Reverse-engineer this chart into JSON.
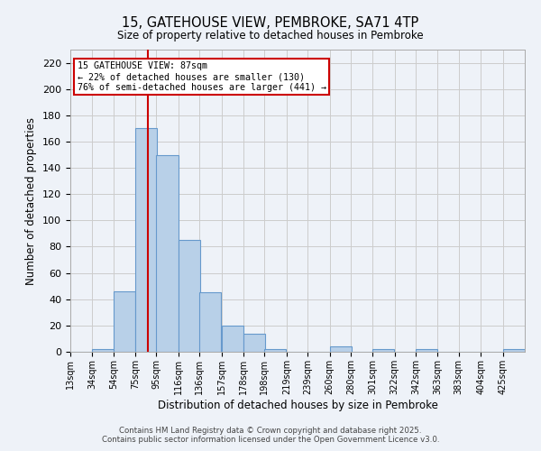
{
  "title": "15, GATEHOUSE VIEW, PEMBROKE, SA71 4TP",
  "subtitle": "Size of property relative to detached houses in Pembroke",
  "xlabel": "Distribution of detached houses by size in Pembroke",
  "ylabel": "Number of detached properties",
  "bin_labels": [
    "13sqm",
    "34sqm",
    "54sqm",
    "75sqm",
    "95sqm",
    "116sqm",
    "136sqm",
    "157sqm",
    "178sqm",
    "198sqm",
    "219sqm",
    "239sqm",
    "260sqm",
    "280sqm",
    "301sqm",
    "322sqm",
    "342sqm",
    "363sqm",
    "383sqm",
    "404sqm",
    "425sqm"
  ],
  "bin_edges": [
    13,
    34,
    54,
    75,
    95,
    116,
    136,
    157,
    178,
    198,
    219,
    239,
    260,
    280,
    301,
    322,
    342,
    363,
    383,
    404,
    425
  ],
  "bar_heights": [
    0,
    2,
    46,
    170,
    150,
    85,
    45,
    20,
    14,
    2,
    0,
    0,
    4,
    0,
    2,
    0,
    2,
    0,
    0,
    0,
    2
  ],
  "bar_color": "#b8d0e8",
  "bar_edgecolor": "#6699cc",
  "property_size": 87,
  "red_line_color": "#cc0000",
  "annotation_line1": "15 GATEHOUSE VIEW: 87sqm",
  "annotation_line2": "← 22% of detached houses are smaller (130)",
  "annotation_line3": "76% of semi-detached houses are larger (441) →",
  "annotation_box_color": "#ffffff",
  "annotation_box_edgecolor": "#cc0000",
  "ylim": [
    0,
    230
  ],
  "yticks": [
    0,
    20,
    40,
    60,
    80,
    100,
    120,
    140,
    160,
    180,
    200,
    220
  ],
  "grid_color": "#cccccc",
  "background_color": "#eef2f8",
  "footer_text": "Contains HM Land Registry data © Crown copyright and database right 2025.\nContains public sector information licensed under the Open Government Licence v3.0."
}
